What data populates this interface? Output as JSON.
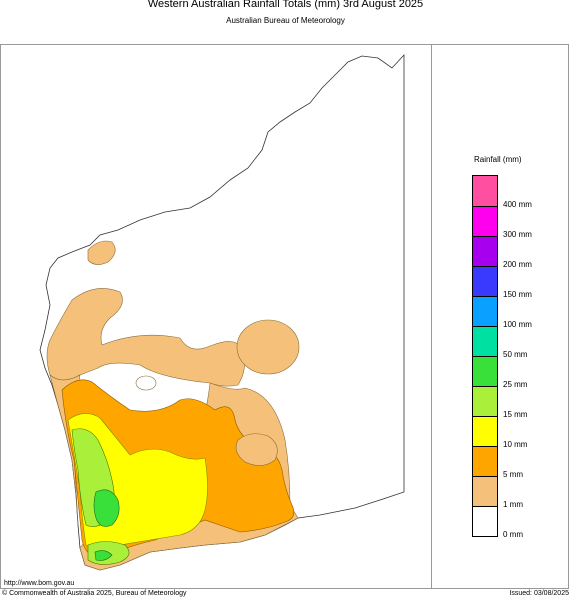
{
  "header": {
    "title": "Western Australian Rainfall Totals (mm) 3rd August 2025",
    "subtitle": "Australian Bureau of Meteorology"
  },
  "legend": {
    "title": "Rainfall (mm)",
    "colors": [
      "#ff4fa0",
      "#ff00ee",
      "#a600ee",
      "#3a3aff",
      "#0aa0ff",
      "#00e0a0",
      "#3ae03a",
      "#aaf03a",
      "#ffff00",
      "#ffa500",
      "#f5c17a",
      "#ffffff"
    ],
    "labels": [
      "400 mm",
      "300 mm",
      "200 mm",
      "150 mm",
      "100 mm",
      "50 mm",
      "25 mm",
      "15 mm",
      "10 mm",
      "5 mm",
      "1 mm",
      "0 mm"
    ]
  },
  "footer": {
    "url": "http://www.bom.gov.au",
    "copyright": "© Commonwealth of Australia 2025, Bureau of Meteorology",
    "issued": "Issued: 03/08/2025"
  }
}
